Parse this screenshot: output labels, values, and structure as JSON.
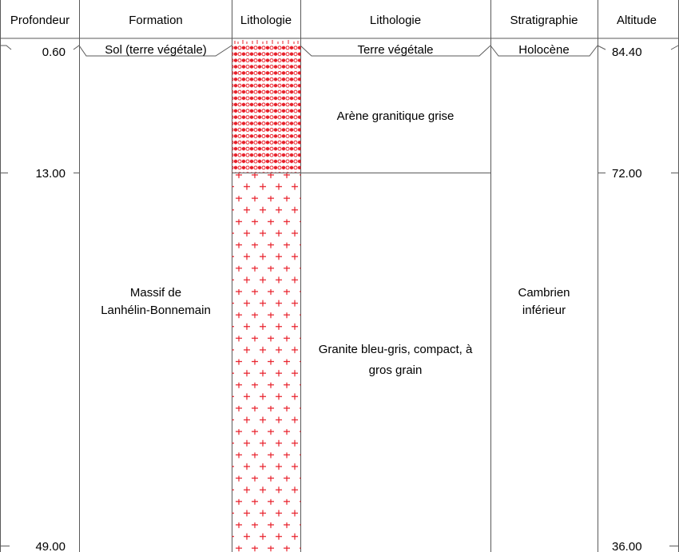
{
  "headers": {
    "depth": "Profondeur",
    "formation": "Formation",
    "lithology_column": "Lithologie",
    "lithology_description": "Lithologie",
    "stratigraphy": "Stratigraphie",
    "altitude": "Altitude"
  },
  "depth_ticks": [
    "0.60",
    "13.00",
    "49.00"
  ],
  "altitude_ticks": [
    "84.40",
    "72.00",
    "36.00"
  ],
  "layers": [
    {
      "top_depth": 0,
      "bottom_depth": 0.6,
      "formation": "Sol (terre végétale)",
      "description": "Terre végétale",
      "stratigraphy": "Holocène",
      "pattern": "soil"
    },
    {
      "top_depth": 0.6,
      "bottom_depth": 13.0,
      "formation_line1": "Massif de",
      "formation_line2": "Lanhélin-Bonnemain",
      "description": "Arène granitique grise",
      "stratigraphy_line1": "Cambrien",
      "stratigraphy_line2": "inférieur",
      "pattern": "dots"
    },
    {
      "top_depth": 13.0,
      "bottom_depth": 49.0,
      "description_line1": "Granite bleu-gris, compact, à",
      "description_line2": "gros grain",
      "pattern": "crosses"
    }
  ],
  "colors": {
    "pattern": "#e8202a",
    "lines": "#5a5a5a"
  }
}
